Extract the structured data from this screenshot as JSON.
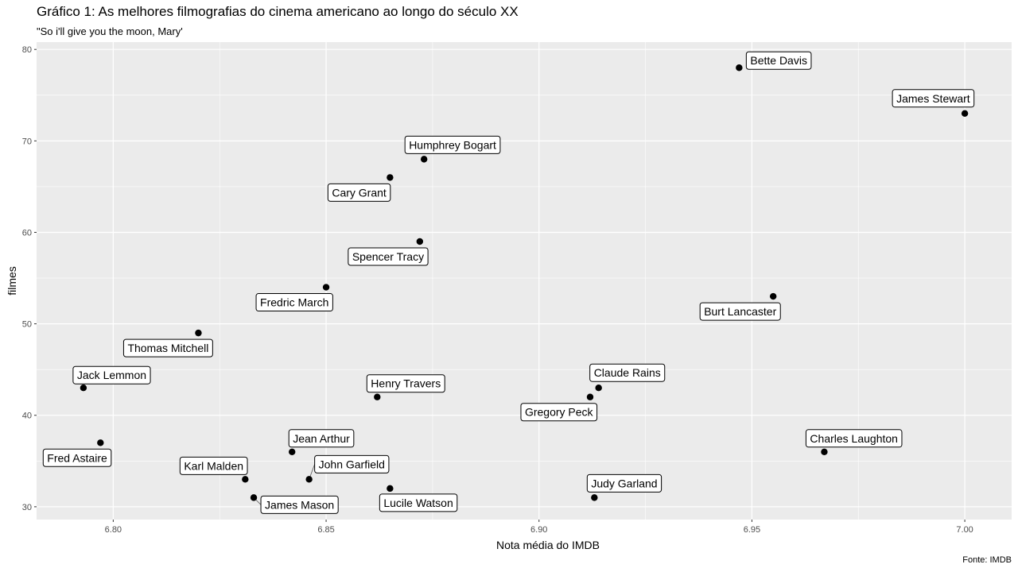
{
  "chart_data": {
    "type": "scatter",
    "title": "Gráfico 1: As melhores filmografias do cinema americano ao longo do século XX",
    "subtitle": "\"So i'll give you the moon, Mary'",
    "caption": "Fonte: IMDB",
    "xlabel": "Nota média do IMDB",
    "ylabel": "filmes",
    "xlim": [
      6.782,
      7.011
    ],
    "ylim": [
      28.6,
      80.8
    ],
    "x_ticks": [
      6.8,
      6.85,
      6.9,
      6.95,
      7.0
    ],
    "x_tick_labels": [
      "6.80",
      "6.85",
      "6.90",
      "6.95",
      "7.00"
    ],
    "y_ticks": [
      30,
      40,
      50,
      60,
      70,
      80
    ],
    "y_tick_labels": [
      "30",
      "40",
      "50",
      "60",
      "70",
      "80"
    ],
    "grid": true,
    "background": "#ebebeb",
    "grid_color": "#ffffff",
    "point_color": "#000000",
    "points": [
      {
        "label": "Bette Davis",
        "x": 6.947,
        "y": 78
      },
      {
        "label": "James Stewart",
        "x": 7.0,
        "y": 73
      },
      {
        "label": "Humphrey Bogart",
        "x": 6.873,
        "y": 68
      },
      {
        "label": "Cary Grant",
        "x": 6.865,
        "y": 66
      },
      {
        "label": "Spencer Tracy",
        "x": 6.872,
        "y": 59
      },
      {
        "label": "Fredric March",
        "x": 6.85,
        "y": 54
      },
      {
        "label": "Burt Lancaster",
        "x": 6.955,
        "y": 53
      },
      {
        "label": "Thomas Mitchell",
        "x": 6.82,
        "y": 49
      },
      {
        "label": "Jack Lemmon",
        "x": 6.793,
        "y": 43
      },
      {
        "label": "Claude Rains",
        "x": 6.914,
        "y": 43
      },
      {
        "label": "Henry Travers",
        "x": 6.862,
        "y": 42
      },
      {
        "label": "Gregory Peck",
        "x": 6.912,
        "y": 42
      },
      {
        "label": "Fred Astaire",
        "x": 6.797,
        "y": 37
      },
      {
        "label": "Jean Arthur",
        "x": 6.842,
        "y": 36
      },
      {
        "label": "Charles Laughton",
        "x": 6.967,
        "y": 36
      },
      {
        "label": "Karl Malden",
        "x": 6.831,
        "y": 33
      },
      {
        "label": "John Garfield",
        "x": 6.846,
        "y": 33
      },
      {
        "label": "Lucile Watson",
        "x": 6.865,
        "y": 32
      },
      {
        "label": "James Mason",
        "x": 6.833,
        "y": 31
      },
      {
        "label": "Judy Garland",
        "x": 6.913,
        "y": 31
      }
    ]
  }
}
